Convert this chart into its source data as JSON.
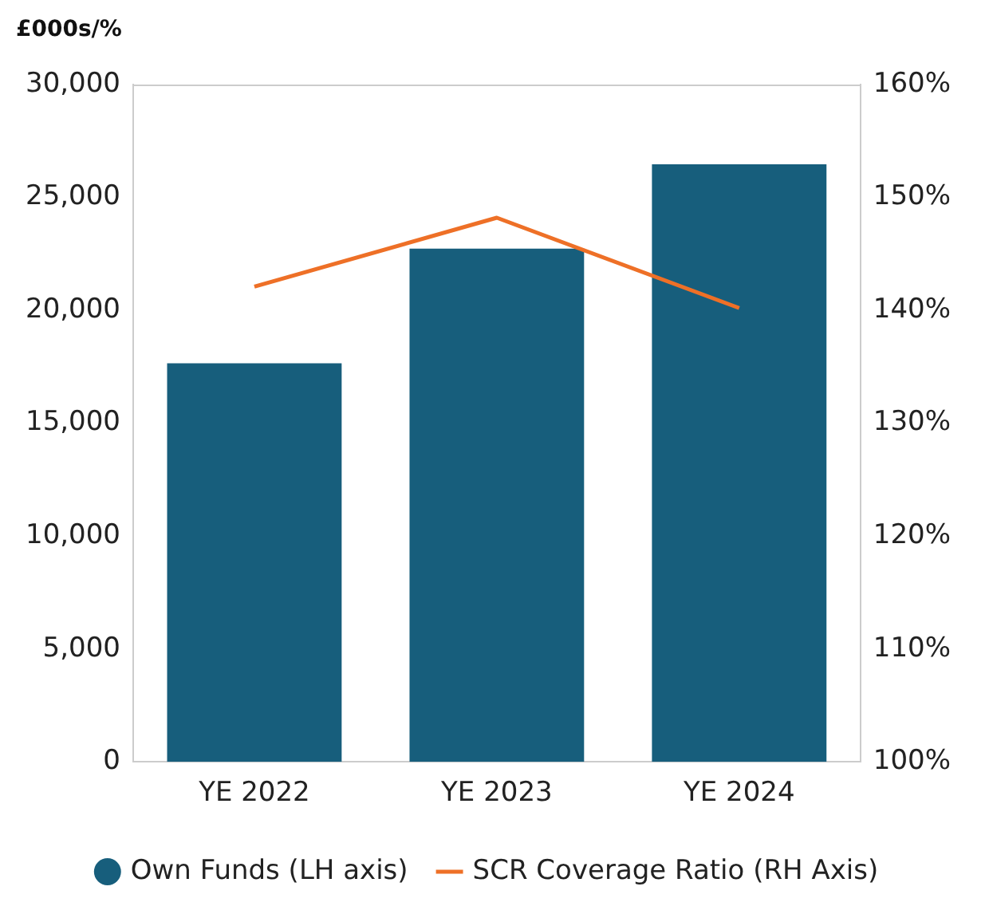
{
  "chart_data": {
    "type": "bar",
    "ylabel": "£000s/%",
    "categories": [
      "YE 2022",
      "YE 2023",
      "YE 2024"
    ],
    "series": [
      {
        "name": "Own Funds (LH axis)",
        "color": "#175e7c",
        "values": [
          17650,
          22730,
          26470
        ]
      },
      {
        "name": "SCR Coverage Ratio (RH Axis)",
        "type": "line",
        "axis": "y2",
        "color": "#ee7027",
        "values": [
          142.1,
          148.2,
          140.2
        ]
      }
    ],
    "ylim": [
      0,
      30000
    ],
    "yticks": [
      0,
      {
        "value": 5000,
        "label": "5,000"
      },
      {
        "value": 10000,
        "label": "10,000"
      },
      {
        "value": 15000,
        "label": "15,000"
      },
      {
        "value": 20000,
        "label": "20,000"
      },
      {
        "value": 25000,
        "label": "25,000"
      },
      {
        "value": 30000,
        "label": "30,000"
      }
    ],
    "y2lim": [
      100,
      160
    ],
    "y2ticks": [
      {
        "value": 100,
        "label": "100%"
      },
      {
        "value": 110,
        "label": "110%"
      },
      {
        "value": 120,
        "label": "120%"
      },
      {
        "value": 130,
        "label": "130%"
      },
      {
        "value": 140,
        "label": "140%"
      },
      {
        "value": 150,
        "label": "150%"
      },
      {
        "value": 160,
        "label": "160%"
      }
    ],
    "grid": false,
    "legend": "bottom",
    "marker": "none"
  }
}
